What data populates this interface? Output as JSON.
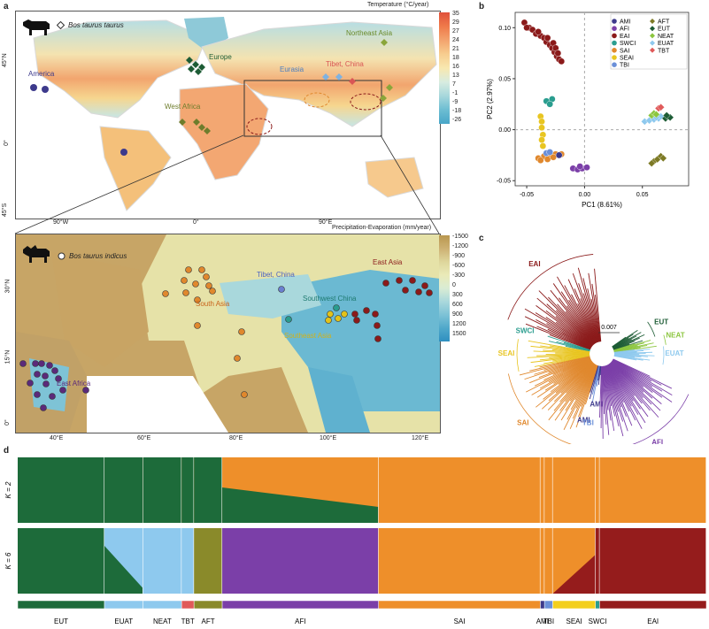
{
  "panels": {
    "a": "a",
    "b": "b",
    "c": "c",
    "d": "d"
  },
  "map_top": {
    "species_label": "Bos taurus taurus",
    "colorbar_title": "Temperature (°C/year)",
    "colorbar_ticks": [
      "35",
      "29",
      "27",
      "24",
      "21",
      "18",
      "16",
      "13",
      "7",
      "-1",
      "-9",
      "-18",
      "-26"
    ],
    "region_labels": {
      "america": "America",
      "europe": "Europe",
      "northeast_asia": "Northeast Asia",
      "eurasia": "Eurasia",
      "tibet": "Tibet, China",
      "west_africa": "West Africa"
    },
    "y_ticks": [
      "45°N",
      "0°",
      "45°S"
    ],
    "x_ticks": [
      "90°W",
      "0°",
      "90°E"
    ],
    "colors": {
      "america": "#3d3a8c",
      "europe": "#1d5c35",
      "northeast_asia": "#8aa53a",
      "eurasia": "#7fb2e0",
      "tibet": "#d95555",
      "west_africa": "#6e7d2c"
    }
  },
  "map_bottom": {
    "species_label": "Bos taurus indicus",
    "colorbar_title": "Precipitation-Evaporation (mm/year)",
    "colorbar_ticks": [
      "-1500",
      "-1200",
      "-900",
      "-600",
      "-300",
      "0",
      "300",
      "600",
      "900",
      "1200",
      "1500"
    ],
    "region_labels": {
      "east_asia": "East Asia",
      "tibet": "Tibet, China",
      "south_asia": "South Asia",
      "southwest_china": "Southwest China",
      "southeast_asia": "Southeast Asia",
      "east_africa": "East Africa"
    },
    "y_ticks": [
      "30°N",
      "15°N",
      "0°"
    ],
    "x_ticks": [
      "40°E",
      "60°E",
      "80°E",
      "100°E",
      "120°E"
    ],
    "colors": {
      "east_asia": "#8b1a1a",
      "tibet": "#6a7fd0",
      "south_asia": "#e0882d",
      "southwest_china": "#2a9d8f",
      "southeast_asia": "#e3c21a",
      "east_africa": "#5b2a7a"
    }
  },
  "chart_data": [
    {
      "type": "scatter",
      "xlabel": "PC1 (8.61%)",
      "ylabel": "PC2 (2.97%)",
      "xlim": [
        -0.06,
        0.09
      ],
      "ylim": [
        -0.055,
        0.115
      ],
      "x_ticks": [
        "-0.05",
        "0.00",
        "0.05"
      ],
      "y_ticks": [
        "0.10",
        "0.05",
        "0.00",
        "-0.05"
      ],
      "legend": [
        {
          "name": "AMI",
          "color": "#3d3a8c",
          "shape": "circle"
        },
        {
          "name": "AFI",
          "color": "#7b3fa8",
          "shape": "circle"
        },
        {
          "name": "EAI",
          "color": "#8b1a1a",
          "shape": "circle"
        },
        {
          "name": "SWCI",
          "color": "#2a9d8f",
          "shape": "circle"
        },
        {
          "name": "SAI",
          "color": "#e0882d",
          "shape": "circle"
        },
        {
          "name": "SEAI",
          "color": "#e8c521",
          "shape": "circle"
        },
        {
          "name": "TBI",
          "color": "#6a8fd8",
          "shape": "circle"
        },
        {
          "name": "AFT",
          "color": "#7d7a25",
          "shape": "diamond"
        },
        {
          "name": "EUT",
          "color": "#1d5c35",
          "shape": "diamond"
        },
        {
          "name": "NEAT",
          "color": "#8cc63f",
          "shape": "diamond"
        },
        {
          "name": "EUAT",
          "color": "#8ec9ee",
          "shape": "diamond"
        },
        {
          "name": "TBT",
          "color": "#e05a5a",
          "shape": "diamond"
        }
      ],
      "series": [
        {
          "name": "EAI",
          "points": [
            [
              -0.052,
              0.105
            ],
            [
              -0.048,
              0.1
            ],
            [
              -0.045,
              0.098
            ],
            [
              -0.042,
              0.094
            ],
            [
              -0.038,
              0.092
            ],
            [
              -0.035,
              0.09
            ],
            [
              -0.033,
              0.086
            ],
            [
              -0.03,
              0.083
            ],
            [
              -0.028,
              0.08
            ],
            [
              -0.026,
              0.076
            ],
            [
              -0.024,
              0.072
            ],
            [
              -0.022,
              0.069
            ],
            [
              -0.02,
              0.067
            ],
            [
              -0.05,
              0.1
            ],
            [
              -0.04,
              0.096
            ],
            [
              -0.032,
              0.09
            ],
            [
              -0.027,
              0.085
            ],
            [
              -0.025,
              0.08
            ],
            [
              -0.023,
              0.075
            ]
          ]
        },
        {
          "name": "SWCI",
          "points": [
            [
              -0.033,
              0.028
            ],
            [
              -0.028,
              0.03
            ],
            [
              -0.03,
              0.025
            ]
          ]
        },
        {
          "name": "SEAI",
          "points": [
            [
              -0.038,
              0.013
            ],
            [
              -0.037,
              0.008
            ],
            [
              -0.037,
              0.002
            ],
            [
              -0.036,
              -0.005
            ],
            [
              -0.037,
              -0.01
            ],
            [
              -0.036,
              -0.016
            ]
          ]
        },
        {
          "name": "SAI",
          "points": [
            [
              -0.04,
              -0.028
            ],
            [
              -0.035,
              -0.026
            ],
            [
              -0.03,
              -0.025
            ],
            [
              -0.025,
              -0.024
            ],
            [
              -0.02,
              -0.024
            ],
            [
              -0.038,
              -0.03
            ],
            [
              -0.032,
              -0.029
            ],
            [
              -0.027,
              -0.027
            ]
          ]
        },
        {
          "name": "TBI",
          "points": [
            [
              -0.033,
              -0.023
            ],
            [
              -0.03,
              -0.022
            ]
          ]
        },
        {
          "name": "AMI",
          "points": [
            [
              -0.022,
              -0.025
            ]
          ]
        },
        {
          "name": "AFI",
          "points": [
            [
              -0.01,
              -0.038
            ],
            [
              -0.006,
              -0.039
            ],
            [
              -0.002,
              -0.038
            ],
            [
              0.002,
              -0.037
            ],
            [
              -0.004,
              -0.036
            ]
          ]
        },
        {
          "name": "EUAT",
          "points": [
            [
              0.052,
              0.008
            ],
            [
              0.056,
              0.009
            ],
            [
              0.06,
              0.01
            ],
            [
              0.064,
              0.011
            ],
            [
              0.066,
              0.013
            ],
            [
              0.062,
              0.012
            ]
          ]
        },
        {
          "name": "TBT",
          "points": [
            [
              0.064,
              0.021
            ],
            [
              0.066,
              0.022
            ]
          ]
        },
        {
          "name": "NEAT",
          "points": [
            [
              0.058,
              0.014
            ],
            [
              0.06,
              0.016
            ],
            [
              0.062,
              0.015
            ]
          ]
        },
        {
          "name": "EUT",
          "points": [
            [
              0.07,
              0.011
            ],
            [
              0.072,
              0.013
            ],
            [
              0.074,
              0.012
            ],
            [
              0.071,
              0.014
            ]
          ]
        },
        {
          "name": "AFT",
          "points": [
            [
              0.06,
              -0.031
            ],
            [
              0.063,
              -0.029
            ],
            [
              0.066,
              -0.026
            ],
            [
              0.068,
              -0.028
            ],
            [
              0.058,
              -0.033
            ]
          ]
        }
      ]
    },
    {
      "type": "tree",
      "scale_label": "0.007",
      "clades": [
        {
          "name": "EAI",
          "color": "#8b1a1a"
        },
        {
          "name": "SWCI",
          "color": "#2a9d8f"
        },
        {
          "name": "SEAI",
          "color": "#e8c521"
        },
        {
          "name": "SAI",
          "color": "#e0882d"
        },
        {
          "name": "AMI",
          "color": "#3d3a8c"
        },
        {
          "name": "TBI",
          "color": "#6a8fd8"
        },
        {
          "name": "AMI",
          "color": "#3d3a8c"
        },
        {
          "name": "AFI",
          "color": "#7b3fa8"
        },
        {
          "name": "EUT",
          "color": "#1d5c35"
        },
        {
          "name": "NEAT",
          "color": "#8cc63f"
        },
        {
          "name": "EUAT",
          "color": "#8ec9ee"
        }
      ]
    },
    {
      "type": "bar",
      "stacked": true,
      "rows": [
        {
          "label": "K = 2"
        },
        {
          "label": "K = 6"
        }
      ],
      "groups": [
        {
          "name": "EUT",
          "share": 0.126
        },
        {
          "name": "EUAT",
          "share": 0.056
        },
        {
          "name": "NEAT",
          "share": 0.056
        },
        {
          "name": "TBT",
          "share": 0.018
        },
        {
          "name": "AFT",
          "share": 0.041
        },
        {
          "name": "AFI",
          "share": 0.227
        },
        {
          "name": "SAI",
          "share": 0.235
        },
        {
          "name": "AMI",
          "share": 0.006
        },
        {
          "name": "TBI",
          "share": 0.012
        },
        {
          "name": "SEAI",
          "share": 0.062
        },
        {
          "name": "SWCI",
          "share": 0.006
        },
        {
          "name": "EAI",
          "share": 0.155
        }
      ],
      "group_colors": {
        "EUT": "#1d6b3a",
        "EUAT": "#8ec9ee",
        "NEAT": "#8ec9ee",
        "TBT": "#e05a5a",
        "AFT": "#8a8a2a",
        "AFI": "#7b3fa8",
        "SAI": "#ee8f2a",
        "AMI": "#3d3a8c",
        "TBI": "#6a8fd8",
        "SEAI": "#f3cf1d",
        "SWCI": "#2a9d8f",
        "EAI": "#951c1c"
      }
    }
  ]
}
